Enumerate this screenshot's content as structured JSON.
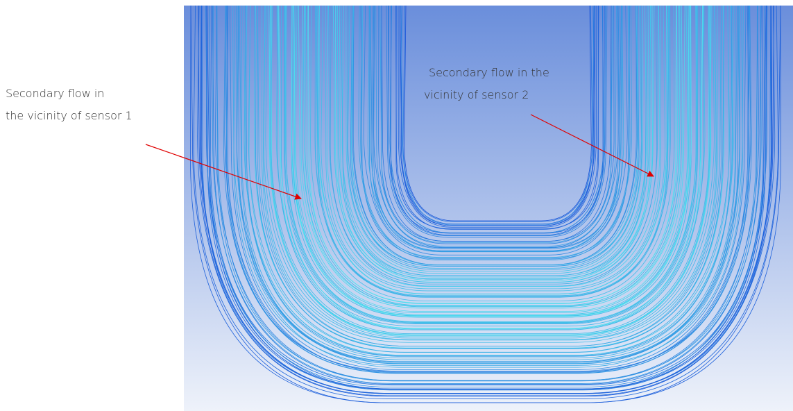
{
  "annotations": [
    {
      "lines": [
        "Secondary flow in",
        "the vicinity of sensor 1"
      ]
    },
    {
      "lines": [
        "Secondary flow in the",
        "vicinity of sensor 2"
      ]
    }
  ]
}
